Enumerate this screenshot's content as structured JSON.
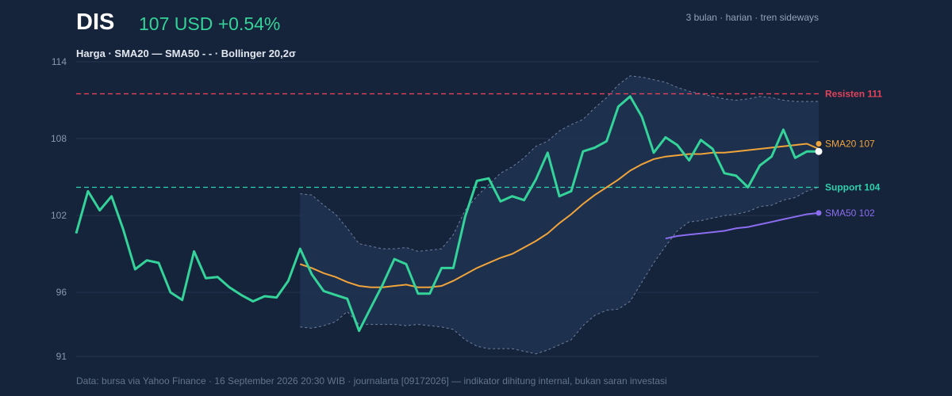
{
  "header": {
    "ticker": "DIS",
    "price": "107 USD +0.54%",
    "meta": "3 bulan · harian · tren sideways",
    "legend": "Harga · SMA20 — SMA50 - - · Bollinger 20,2σ"
  },
  "footer": "Data: bursa via Yahoo Finance · 16 September 2026 20:30 WIB · journalarta [09172026] — indikator dihitung internal, bukan saran investasi",
  "colors": {
    "background": "#15233b",
    "price": "#34d399",
    "sma20": "#f0a43a",
    "sma50": "#8b6df0",
    "resistance": "#e0435a",
    "support": "#2fd1ad",
    "band_fill": "#1f3352",
    "band_edge": "#6f7f9b",
    "grid": "#26354f"
  },
  "chart_data": {
    "type": "line",
    "ylim": [
      91,
      114
    ],
    "y_ticks": [
      91,
      96,
      102,
      108,
      114
    ],
    "grid": true,
    "legend_position": "top-left",
    "x": [
      1,
      2,
      3,
      4,
      5,
      6,
      7,
      8,
      9,
      10,
      11,
      12,
      13,
      14,
      15,
      16,
      17,
      18,
      19,
      20,
      21,
      22,
      23,
      24,
      25,
      26,
      27,
      28,
      29,
      30,
      31,
      32,
      33,
      34,
      35,
      36,
      37,
      38,
      39,
      40,
      41,
      42,
      43,
      44,
      45,
      46,
      47,
      48,
      49,
      50,
      51,
      52,
      53,
      54,
      55,
      56,
      57,
      58,
      59,
      60,
      61,
      62,
      63,
      64
    ],
    "series": [
      {
        "name": "Harga",
        "values": [
          100.6,
          103.9,
          102.4,
          103.5,
          100.9,
          97.8,
          98.5,
          98.3,
          96.0,
          95.4,
          99.2,
          97.1,
          97.2,
          96.4,
          95.8,
          95.3,
          95.7,
          95.6,
          96.9,
          99.4,
          97.4,
          96.1,
          95.8,
          95.5,
          93.0,
          94.8,
          96.6,
          98.6,
          98.2,
          95.9,
          95.9,
          97.9,
          97.9,
          101.9,
          104.7,
          104.9,
          103.1,
          103.5,
          103.2,
          104.8,
          106.9,
          103.5,
          103.9,
          107.0,
          107.3,
          107.8,
          110.5,
          111.3,
          109.7,
          106.9,
          108.1,
          107.5,
          106.3,
          107.9,
          107.2,
          105.3,
          105.1,
          104.2,
          105.9,
          106.6,
          108.7,
          106.5,
          107.0,
          107.0
        ]
      },
      {
        "name": "SMA20",
        "values": [
          null,
          null,
          null,
          null,
          null,
          null,
          null,
          null,
          null,
          null,
          null,
          null,
          null,
          null,
          null,
          null,
          null,
          null,
          null,
          98.2,
          97.9,
          97.5,
          97.2,
          96.8,
          96.5,
          96.4,
          96.4,
          96.5,
          96.6,
          96.4,
          96.4,
          96.5,
          96.9,
          97.4,
          97.9,
          98.3,
          98.7,
          99.0,
          99.5,
          100.0,
          100.6,
          101.4,
          102.1,
          102.9,
          103.6,
          104.2,
          104.8,
          105.5,
          106.0,
          106.4,
          106.6,
          106.7,
          106.8,
          106.8,
          106.9,
          106.9,
          107.0,
          107.1,
          107.2,
          107.3,
          107.4,
          107.5,
          107.6,
          107.2
        ]
      },
      {
        "name": "SMA50",
        "values": [
          null,
          null,
          null,
          null,
          null,
          null,
          null,
          null,
          null,
          null,
          null,
          null,
          null,
          null,
          null,
          null,
          null,
          null,
          null,
          null,
          null,
          null,
          null,
          null,
          null,
          null,
          null,
          null,
          null,
          null,
          null,
          null,
          null,
          null,
          null,
          null,
          null,
          null,
          null,
          null,
          null,
          null,
          null,
          null,
          null,
          null,
          null,
          null,
          null,
          null,
          100.2,
          100.4,
          100.5,
          100.6,
          100.7,
          100.8,
          101.0,
          101.1,
          101.3,
          101.5,
          101.7,
          101.9,
          102.1,
          102.2
        ]
      }
    ],
    "bollinger": {
      "upper": [
        null,
        null,
        null,
        null,
        null,
        null,
        null,
        null,
        null,
        null,
        null,
        null,
        null,
        null,
        null,
        null,
        null,
        null,
        null,
        103.7,
        103.6,
        102.8,
        102.1,
        101.0,
        99.8,
        99.6,
        99.4,
        99.4,
        99.5,
        99.2,
        99.3,
        99.4,
        100.5,
        102.4,
        103.5,
        104.4,
        105.3,
        105.8,
        106.5,
        107.4,
        107.8,
        108.6,
        109.1,
        109.5,
        110.4,
        111.2,
        112.2,
        112.9,
        112.8,
        112.6,
        112.4,
        112.0,
        111.7,
        111.5,
        111.3,
        111.1,
        111.0,
        111.1,
        111.3,
        111.2,
        111.0,
        110.9,
        110.9,
        110.9
      ],
      "lower": [
        null,
        null,
        null,
        null,
        null,
        null,
        null,
        null,
        null,
        null,
        null,
        null,
        null,
        null,
        null,
        null,
        null,
        null,
        null,
        93.3,
        93.2,
        93.4,
        93.7,
        94.5,
        93.5,
        93.5,
        93.5,
        93.5,
        93.4,
        93.5,
        93.4,
        93.3,
        93.1,
        92.3,
        91.8,
        91.6,
        91.6,
        91.6,
        91.4,
        91.2,
        91.5,
        91.9,
        92.3,
        93.4,
        94.2,
        94.6,
        94.7,
        95.3,
        96.8,
        98.3,
        99.6,
        100.8,
        101.5,
        101.6,
        101.8,
        102.0,
        102.1,
        102.3,
        102.7,
        102.8,
        103.2,
        103.4,
        103.9,
        104.2
      ]
    },
    "levels": {
      "resistance": {
        "value": 111.5,
        "label": "Resisten 111"
      },
      "support": {
        "value": 104.2,
        "label": "Support 104"
      }
    },
    "end_labels": {
      "sma20": "SMA20 107",
      "sma50": "SMA50 102"
    }
  }
}
